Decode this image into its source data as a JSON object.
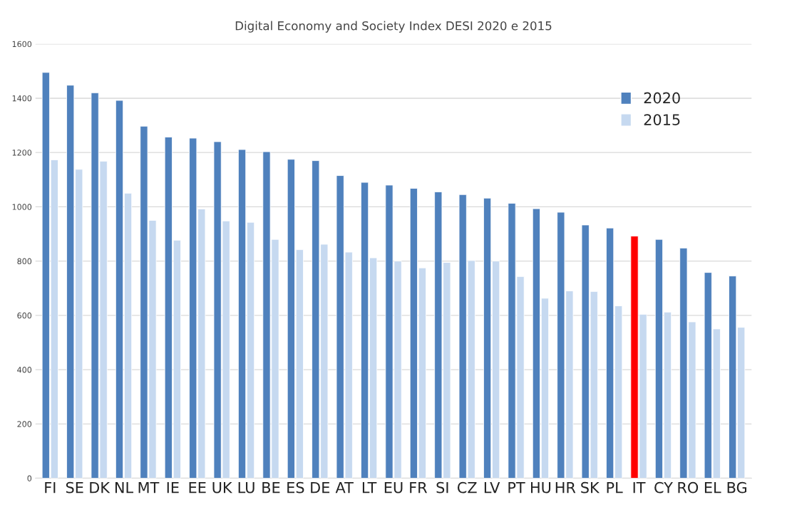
{
  "chart_data": {
    "type": "bar",
    "title": "Digital Economy and Society Index DESI 2020 e 2015",
    "categories": [
      "FI",
      "SE",
      "DK",
      "NL",
      "MT",
      "IE",
      "EE",
      "UK",
      "LU",
      "BE",
      "ES",
      "DE",
      "AT",
      "LT",
      "EU",
      "FR",
      "SI",
      "CZ",
      "LV",
      "PT",
      "HU",
      "HR",
      "SK",
      "PL",
      "IT",
      "CY",
      "RO",
      "EL",
      "BG"
    ],
    "series": [
      {
        "name": "2020",
        "color": "#4f81bd",
        "colors": [
          "#4f81bd",
          "#4f81bd",
          "#4f81bd",
          "#4f81bd",
          "#4f81bd",
          "#4f81bd",
          "#4f81bd",
          "#4f81bd",
          "#4f81bd",
          "#4f81bd",
          "#4f81bd",
          "#4f81bd",
          "#4f81bd",
          "#4f81bd",
          "#4f81bd",
          "#4f81bd",
          "#4f81bd",
          "#4f81bd",
          "#4f81bd",
          "#4f81bd",
          "#4f81bd",
          "#4f81bd",
          "#4f81bd",
          "#4f81bd",
          "#ff0000",
          "#4f81bd",
          "#4f81bd",
          "#4f81bd",
          "#4f81bd"
        ],
        "values": [
          1495,
          1448,
          1420,
          1392,
          1297,
          1257,
          1253,
          1240,
          1211,
          1203,
          1175,
          1170,
          1115,
          1090,
          1080,
          1068,
          1055,
          1045,
          1032,
          1013,
          993,
          980,
          933,
          922,
          892,
          880,
          848,
          758,
          745
        ]
      },
      {
        "name": "2015",
        "color": "#c6d9f0",
        "values": [
          1173,
          1138,
          1168,
          1050,
          950,
          877,
          992,
          948,
          943,
          880,
          842,
          862,
          833,
          812,
          800,
          775,
          795,
          802,
          800,
          743,
          663,
          690,
          688,
          635,
          604,
          612,
          576,
          550,
          556
        ]
      }
    ],
    "ylim": [
      0,
      1600
    ],
    "yticks": [
      0,
      200,
      400,
      600,
      800,
      1000,
      1200,
      1400,
      1600
    ],
    "grid": "y",
    "legend": "top right"
  }
}
